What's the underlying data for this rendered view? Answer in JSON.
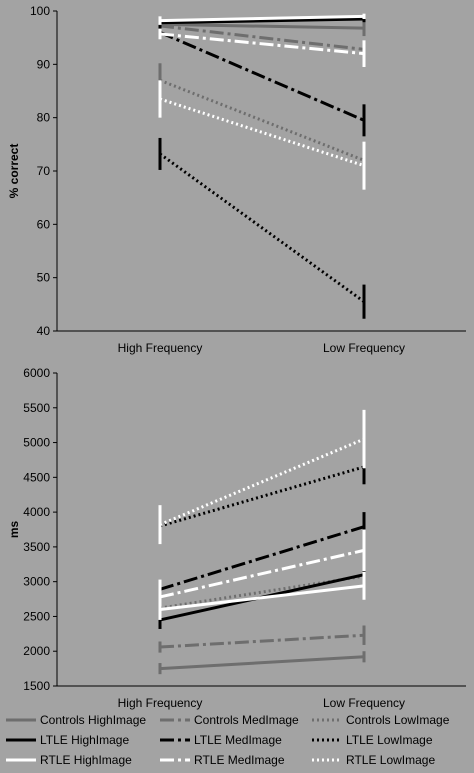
{
  "chart_data": [
    {
      "type": "line",
      "ylabel": "% correct",
      "categories": [
        "High Frequency",
        "Low Frequency"
      ],
      "ylim": [
        40,
        100
      ],
      "yticks": [
        40,
        50,
        60,
        70,
        80,
        90,
        100
      ],
      "series": [
        {
          "name": "Controls HighImage",
          "group": "controls",
          "style": "solid",
          "values": [
            97.5,
            96.8
          ],
          "errors": [
            0.7,
            1.5
          ]
        },
        {
          "name": "Controls MedImage",
          "group": "controls",
          "style": "dashdot",
          "values": [
            97.2,
            92.8
          ],
          "errors": [
            0.8,
            1.4
          ]
        },
        {
          "name": "Controls LowImage",
          "group": "controls",
          "style": "dotted",
          "values": [
            87.0,
            72.0
          ],
          "errors": [
            3.2,
            3.0
          ]
        },
        {
          "name": "LTLE HighImage",
          "group": "ltle",
          "style": "solid",
          "values": [
            97.8,
            98.5
          ],
          "errors": [
            0.6,
            0.6
          ]
        },
        {
          "name": "LTLE MedImage",
          "group": "ltle",
          "style": "dashdot",
          "values": [
            96.0,
            79.5
          ],
          "errors": [
            1.2,
            3.0
          ]
        },
        {
          "name": "LTLE LowImage",
          "group": "ltle",
          "style": "dotted",
          "values": [
            73.2,
            45.5
          ],
          "errors": [
            3.0,
            3.2
          ]
        },
        {
          "name": "RTLE HighImage",
          "group": "rtle",
          "style": "solid",
          "values": [
            98.2,
            99.0
          ],
          "errors": [
            0.8,
            0.5
          ]
        },
        {
          "name": "RTLE MedImage",
          "group": "rtle",
          "style": "dashdot",
          "values": [
            95.7,
            92.0
          ],
          "errors": [
            1.0,
            2.5
          ]
        },
        {
          "name": "RTLE LowImage",
          "group": "rtle",
          "style": "dotted",
          "values": [
            83.5,
            71.0
          ],
          "errors": [
            3.5,
            4.5
          ]
        }
      ]
    },
    {
      "type": "line",
      "ylabel": "ms",
      "categories": [
        "High Frequency",
        "Low Frequency"
      ],
      "ylim": [
        1500,
        6000
      ],
      "yticks": [
        1500,
        2000,
        2500,
        3000,
        3500,
        4000,
        4500,
        5000,
        5500,
        6000
      ],
      "series": [
        {
          "name": "Controls HighImage",
          "group": "controls",
          "style": "solid",
          "values": [
            1750,
            1920
          ],
          "errors": [
            80,
            80
          ]
        },
        {
          "name": "Controls MedImage",
          "group": "controls",
          "style": "dashdot",
          "values": [
            2060,
            2230
          ],
          "errors": [
            80,
            140
          ]
        },
        {
          "name": "Controls LowImage",
          "group": "controls",
          "style": "dotted",
          "values": [
            2620,
            3080
          ],
          "errors": [
            130,
            180
          ]
        },
        {
          "name": "LTLE HighImage",
          "group": "ltle",
          "style": "solid",
          "values": [
            2450,
            3100
          ],
          "errors": [
            130,
            130
          ]
        },
        {
          "name": "LTLE MedImage",
          "group": "ltle",
          "style": "dashdot",
          "values": [
            2890,
            3790
          ],
          "errors": [
            120,
            210
          ]
        },
        {
          "name": "LTLE LowImage",
          "group": "ltle",
          "style": "dotted",
          "values": [
            3800,
            4650
          ],
          "errors": [
            200,
            250
          ]
        },
        {
          "name": "RTLE HighImage",
          "group": "rtle",
          "style": "solid",
          "values": [
            2600,
            2940
          ],
          "errors": [
            150,
            200
          ]
        },
        {
          "name": "RTLE MedImage",
          "group": "rtle",
          "style": "dashdot",
          "values": [
            2780,
            3450
          ],
          "errors": [
            250,
            300
          ]
        },
        {
          "name": "RTLE LowImage",
          "group": "rtle",
          "style": "dotted",
          "values": [
            3820,
            5050
          ],
          "errors": [
            280,
            420
          ]
        }
      ]
    }
  ],
  "legend": {
    "placement": "bottom",
    "colors": {
      "controls": "#6e6e6e",
      "ltle": "#000000",
      "rtle": "#ffffff"
    }
  }
}
